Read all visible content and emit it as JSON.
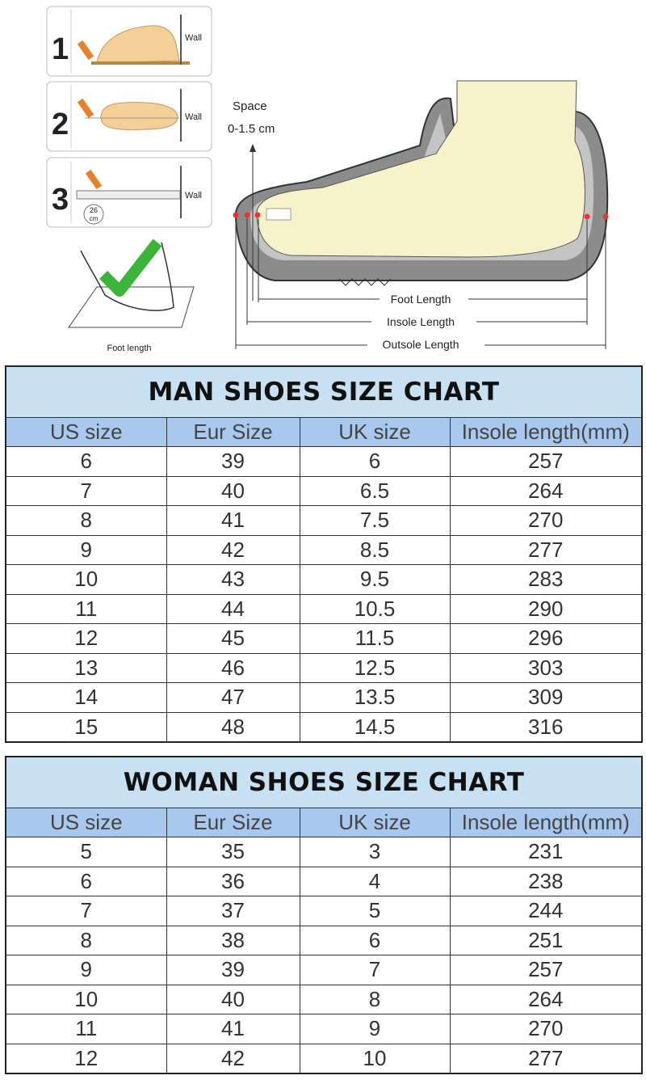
{
  "illustration": {
    "steps": [
      {
        "number": "1",
        "wall": "Wall"
      },
      {
        "number": "2",
        "wall": "Wall"
      },
      {
        "number": "3",
        "wall": "Wall"
      }
    ],
    "measure_value": "26",
    "measure_unit": "cm",
    "foot_length_caption": "Foot length",
    "space_label": "Space",
    "space_range": "0-1.5 cm",
    "dimensions": [
      "Foot Length",
      "Insole Length",
      "Outsole Length"
    ]
  },
  "tables": [
    {
      "title": "MAN SHOES SIZE CHART",
      "columns": [
        "US size",
        "Eur Size",
        "UK size",
        "Insole length(mm)"
      ],
      "rows": [
        [
          "6",
          "39",
          "6",
          "257"
        ],
        [
          "7",
          "40",
          "6.5",
          "264"
        ],
        [
          "8",
          "41",
          "7.5",
          "270"
        ],
        [
          "9",
          "42",
          "8.5",
          "277"
        ],
        [
          "10",
          "43",
          "9.5",
          "283"
        ],
        [
          "11",
          "44",
          "10.5",
          "290"
        ],
        [
          "12",
          "45",
          "11.5",
          "296"
        ],
        [
          "13",
          "46",
          "12.5",
          "303"
        ],
        [
          "14",
          "47",
          "13.5",
          "309"
        ],
        [
          "15",
          "48",
          "14.5",
          "316"
        ]
      ]
    },
    {
      "title": "WOMAN SHOES SIZE CHART",
      "columns": [
        "US size",
        "Eur Size",
        "UK size",
        "Insole length(mm)"
      ],
      "rows": [
        [
          "5",
          "35",
          "3",
          "231"
        ],
        [
          "6",
          "36",
          "4",
          "238"
        ],
        [
          "7",
          "37",
          "5",
          "244"
        ],
        [
          "8",
          "38",
          "6",
          "251"
        ],
        [
          "9",
          "39",
          "7",
          "257"
        ],
        [
          "10",
          "40",
          "8",
          "264"
        ],
        [
          "11",
          "41",
          "9",
          "270"
        ],
        [
          "12",
          "42",
          "10",
          "277"
        ]
      ]
    }
  ]
}
